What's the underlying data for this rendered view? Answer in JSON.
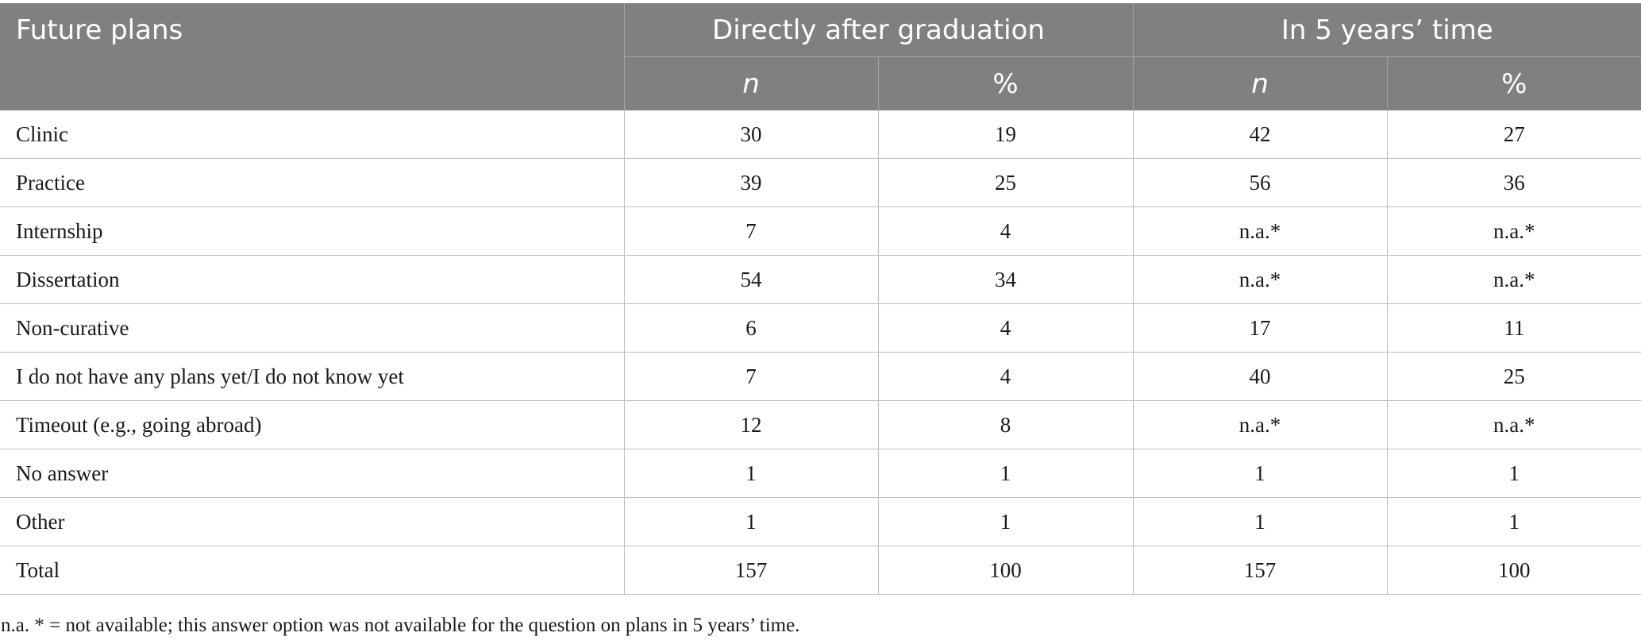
{
  "table": {
    "header": {
      "future_plans": "Future plans",
      "group_1": "Directly after graduation",
      "group_2": "In 5 years’ time",
      "sub": [
        "n",
        "%",
        "n",
        "%"
      ]
    },
    "rows": [
      {
        "label": "Clinic",
        "values": [
          "30",
          "19",
          "42",
          "27"
        ]
      },
      {
        "label": "Practice",
        "values": [
          "39",
          "25",
          "56",
          "36"
        ]
      },
      {
        "label": "Internship",
        "values": [
          "7",
          "4",
          "n.a.*",
          "n.a.*"
        ]
      },
      {
        "label": "Dissertation",
        "values": [
          "54",
          "34",
          "n.a.*",
          "n.a.*"
        ]
      },
      {
        "label": "Non-curative",
        "values": [
          "6",
          "4",
          "17",
          "11"
        ]
      },
      {
        "label": "I do not have any plans yet/I do not know yet",
        "values": [
          "7",
          "4",
          "40",
          "25"
        ]
      },
      {
        "label": "Timeout (e.g., going abroad)",
        "values": [
          "12",
          "8",
          "n.a.*",
          "n.a.*"
        ]
      },
      {
        "label": "No answer",
        "values": [
          "1",
          "1",
          "1",
          "1"
        ]
      },
      {
        "label": "Other",
        "values": [
          "1",
          "1",
          "1",
          "1"
        ]
      },
      {
        "label": "Total",
        "values": [
          "157",
          "100",
          "157",
          "100"
        ]
      }
    ]
  },
  "footnote": "n.a. * = not available; this answer option was not available for the question on plans in 5 years’ time.",
  "colors": {
    "header_bg": "#808080",
    "header_text": "#ffffff",
    "grid_line": "#bdbdbd"
  }
}
